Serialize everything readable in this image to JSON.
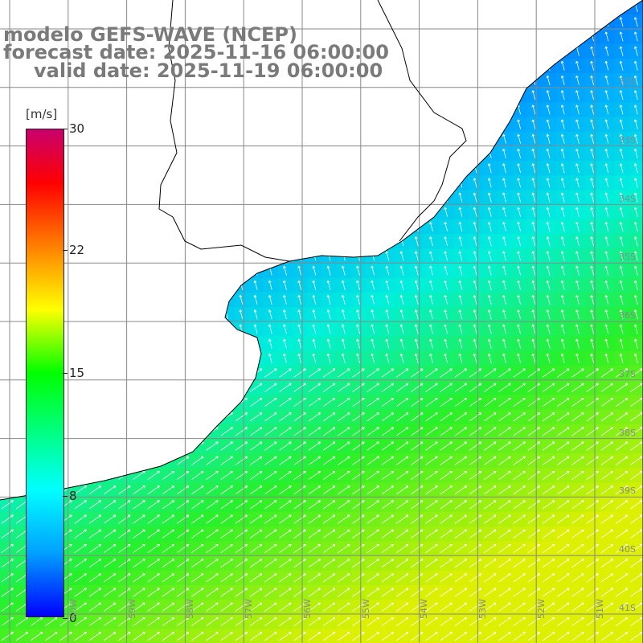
{
  "title": {
    "model": "modelo GEFS-WAVE (NCEP)",
    "forecast": "forecast date: 2025-11-16 06:00:00",
    "valid": "valid date: 2025-11-19 06:00:00"
  },
  "colorbar": {
    "units": "[m/s]",
    "ticks": [
      "30",
      "22",
      "15",
      "8",
      "0"
    ],
    "colors": [
      "#0000ff",
      "#00a0ff",
      "#00ffff",
      "#00ff00",
      "#ffff00",
      "#ff8000",
      "#ff0000",
      "#c8006e"
    ]
  },
  "lat_labels": [
    "32S",
    "33S",
    "34S",
    "35S",
    "36S",
    "37S",
    "38S",
    "39S",
    "40S",
    "41S"
  ],
  "lon_labels": [
    "60W",
    "59W",
    "58W",
    "57W",
    "56W",
    "55W",
    "54W",
    "53W",
    "52W",
    "51W"
  ],
  "map": {
    "land_color": "#ffffff",
    "coast_color": "#000000",
    "grid_color": "#888888",
    "arrow_color": "#ffffff"
  }
}
